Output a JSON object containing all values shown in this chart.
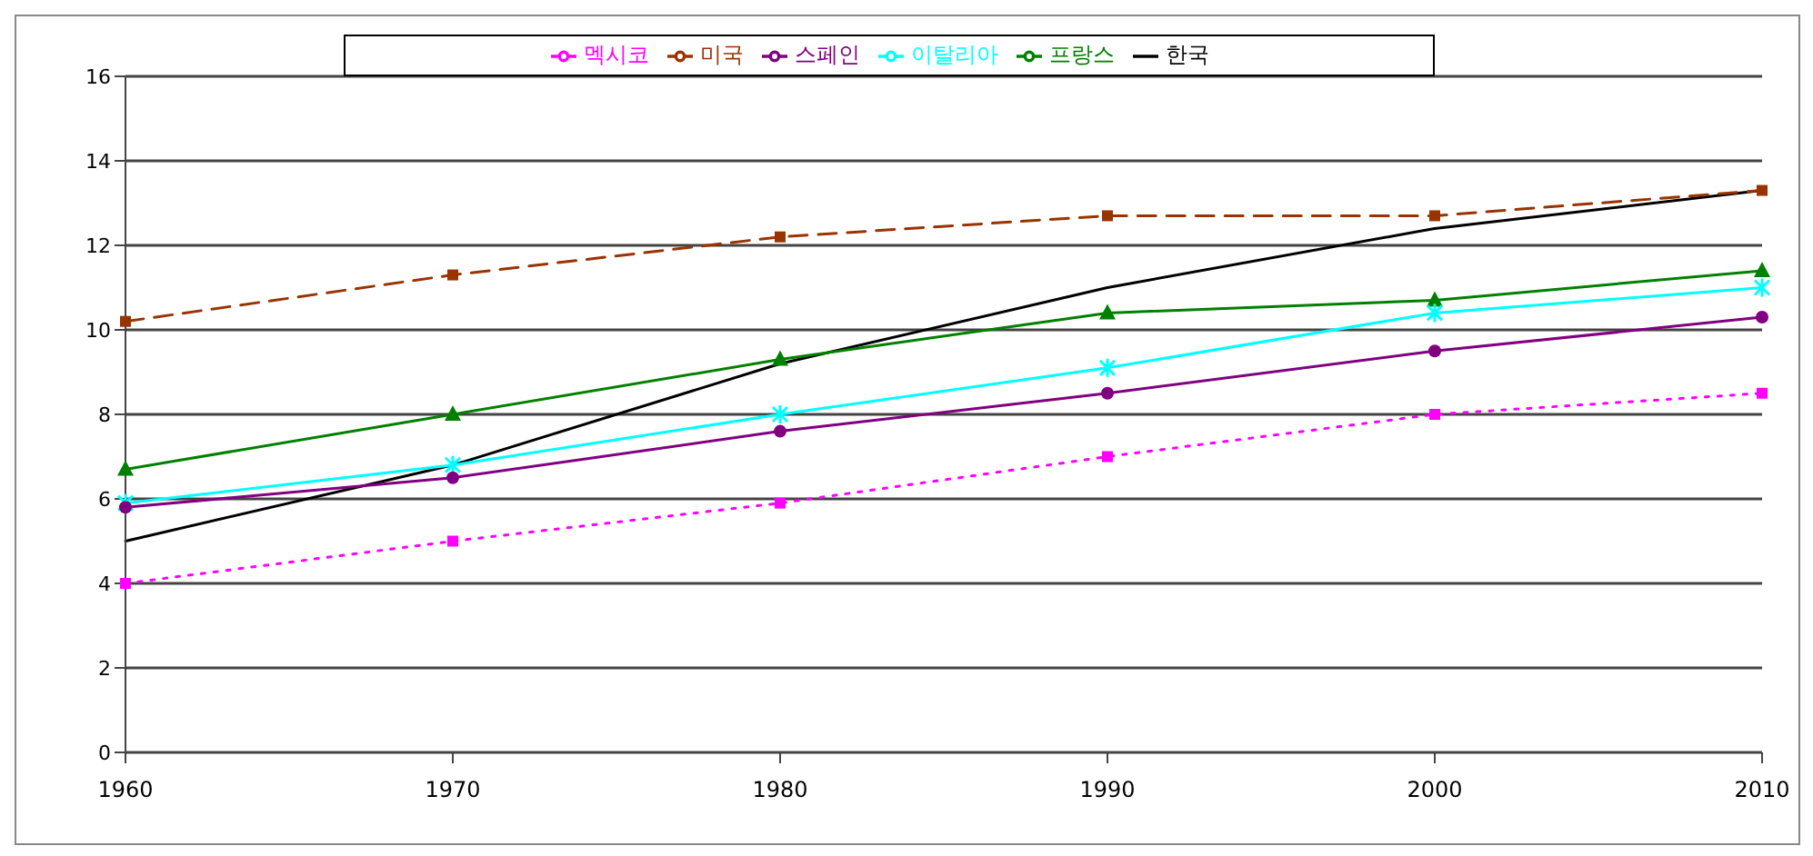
{
  "chart_data": {
    "type": "line",
    "categories": [
      "1960",
      "1970",
      "1980",
      "1990",
      "2000",
      "2010"
    ],
    "series": [
      {
        "name": "한국",
        "color": "#000000",
        "values": [
          5.0,
          6.8,
          9.2,
          11.0,
          12.4,
          13.3
        ],
        "marker": "none",
        "line_style": "solid"
      },
      {
        "name": "멕시코",
        "color": "#ff00ff",
        "values": [
          4.0,
          5.0,
          5.9,
          7.0,
          8.0,
          8.5
        ],
        "marker": "square",
        "line_style": "dotted"
      },
      {
        "name": "프랑스",
        "color": "#008000",
        "values": [
          6.7,
          8.0,
          9.3,
          10.4,
          10.7,
          11.4
        ],
        "marker": "triangle",
        "line_style": "solid"
      },
      {
        "name": "이탈리아",
        "color": "#00ffff",
        "values": [
          5.9,
          6.8,
          8.0,
          9.1,
          10.4,
          11.0
        ],
        "marker": "cross",
        "line_style": "solid"
      },
      {
        "name": "스페인",
        "color": "#800080",
        "values": [
          5.8,
          6.5,
          7.6,
          8.5,
          9.5,
          10.3
        ],
        "marker": "circle",
        "line_style": "solid"
      },
      {
        "name": "미국",
        "color": "#993300",
        "values": [
          10.2,
          11.3,
          12.2,
          12.7,
          12.7,
          13.3
        ],
        "marker": "square",
        "line_style": "dashed"
      }
    ],
    "ylim": [
      0,
      16
    ],
    "yticks": [
      0,
      2,
      4,
      6,
      8,
      10,
      12,
      14,
      16
    ],
    "grid": "y",
    "legend": "top"
  }
}
